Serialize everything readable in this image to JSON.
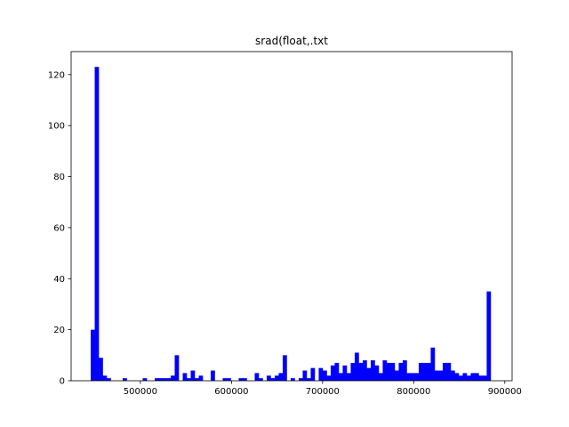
{
  "chart_data": {
    "type": "bar",
    "title": "srad(float,.txt",
    "xlabel": "",
    "ylabel": "",
    "xlim": [
      424000,
      908000
    ],
    "ylim": [
      0,
      129
    ],
    "x_ticks": [
      500000,
      600000,
      700000,
      800000,
      900000
    ],
    "x_tick_labels": [
      "500000",
      "600000",
      "700000",
      "800000",
      "900000"
    ],
    "y_ticks": [
      0,
      20,
      40,
      60,
      80,
      100,
      120
    ],
    "y_tick_labels": [
      "0",
      "20",
      "40",
      "60",
      "80",
      "100",
      "120"
    ],
    "bar_color": "#0000ff",
    "bin_start": 445500,
    "bin_width": 4390,
    "counts": [
      20,
      123,
      9,
      2,
      1,
      0,
      0,
      0,
      1,
      0,
      0,
      0,
      0,
      1,
      0,
      0,
      1,
      1,
      1,
      1,
      2,
      10,
      0,
      3,
      1,
      4,
      1,
      2,
      0,
      0,
      4,
      0,
      0,
      1,
      1,
      0,
      0,
      1,
      1,
      0,
      0,
      3,
      1,
      0,
      2,
      1,
      2,
      3,
      10,
      0,
      1,
      0,
      1,
      4,
      1,
      5,
      0,
      5,
      4,
      2,
      6,
      7,
      3,
      6,
      3,
      7,
      11,
      7,
      8,
      5,
      8,
      6,
      3,
      8,
      7,
      7,
      4,
      7,
      8,
      3,
      3,
      3,
      7,
      7,
      7,
      13,
      4,
      4,
      7,
      7,
      4,
      3,
      2,
      3,
      2,
      3,
      3,
      2,
      2,
      35
    ]
  }
}
